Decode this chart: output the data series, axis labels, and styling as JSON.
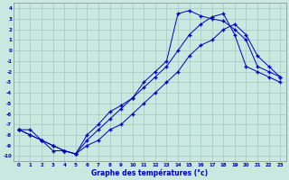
{
  "xlabel": "Graphe des températures (°c)",
  "bg_color": "#c8e8e0",
  "grid_color": "#aaccc4",
  "line_color": "#0000bb",
  "xlim": [
    -0.5,
    23.5
  ],
  "ylim": [
    -10.5,
    4.5
  ],
  "xticks": [
    0,
    1,
    2,
    3,
    4,
    5,
    6,
    7,
    8,
    9,
    10,
    11,
    12,
    13,
    14,
    15,
    16,
    17,
    18,
    19,
    20,
    21,
    22,
    23
  ],
  "yticks": [
    4,
    3,
    2,
    1,
    0,
    -1,
    -2,
    -3,
    -4,
    -5,
    -6,
    -7,
    -8,
    -9,
    -10
  ],
  "line1_x": [
    0,
    1,
    2,
    3,
    4,
    5,
    6,
    7,
    8,
    9,
    10,
    11,
    12,
    13,
    14,
    15,
    16,
    17,
    18,
    19,
    20,
    21,
    22,
    23
  ],
  "line1_y": [
    -7.5,
    -8.0,
    -8.5,
    -9.0,
    -9.5,
    -9.8,
    -9.0,
    -8.5,
    -7.5,
    -7.0,
    -6.0,
    -5.0,
    -4.0,
    -3.0,
    -2.0,
    -0.5,
    0.5,
    1.0,
    2.0,
    2.5,
    1.5,
    -0.5,
    -1.5,
    -2.5
  ],
  "line2_x": [
    0,
    1,
    2,
    3,
    4,
    5,
    6,
    7,
    8,
    9,
    10,
    11,
    12,
    13,
    14,
    15,
    16,
    17,
    18,
    19,
    20,
    21,
    22,
    23
  ],
  "line2_y": [
    -7.5,
    -8.0,
    -8.5,
    -9.5,
    -9.5,
    -9.8,
    -8.5,
    -7.5,
    -6.5,
    -5.5,
    -4.5,
    -3.0,
    -2.0,
    -1.0,
    3.5,
    3.8,
    3.3,
    3.0,
    2.8,
    2.0,
    1.0,
    -1.5,
    -2.0,
    -2.5
  ],
  "line3_x": [
    0,
    1,
    2,
    3,
    4,
    5,
    6,
    7,
    8,
    9,
    10,
    11,
    12,
    13,
    14,
    15,
    16,
    17,
    18,
    19,
    20,
    21,
    22,
    23
  ],
  "line3_y": [
    -7.5,
    -7.5,
    -8.5,
    -9.0,
    -9.5,
    -9.8,
    -8.0,
    -7.0,
    -5.8,
    -5.2,
    -4.5,
    -3.5,
    -2.5,
    -1.5,
    0.0,
    1.5,
    2.5,
    3.2,
    3.5,
    1.5,
    -1.5,
    -2.0,
    -2.5,
    -3.0
  ]
}
